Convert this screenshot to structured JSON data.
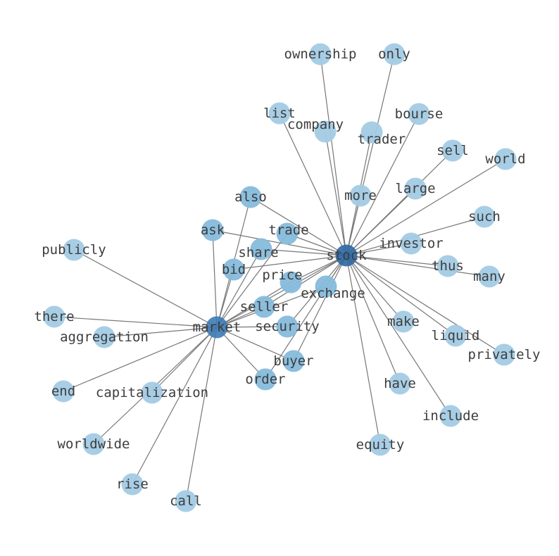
{
  "graph": {
    "colors": {
      "leaf": "#a3cbe5",
      "shared": "#86bbdc",
      "hub_market": "#3d7ab5",
      "hub_stock": "#2c68a3",
      "edge": "#777777",
      "label": "#3d3d3d"
    },
    "hubs": [
      "stock",
      "market"
    ],
    "nodes": [
      {
        "id": "stock",
        "type": "hub"
      },
      {
        "id": "market",
        "type": "hub"
      },
      {
        "id": "ownership",
        "type": "leaf"
      },
      {
        "id": "only",
        "type": "leaf"
      },
      {
        "id": "list",
        "type": "leaf"
      },
      {
        "id": "company",
        "type": "leaf"
      },
      {
        "id": "trader",
        "type": "leaf"
      },
      {
        "id": "bourse",
        "type": "leaf"
      },
      {
        "id": "sell",
        "type": "leaf"
      },
      {
        "id": "world",
        "type": "leaf"
      },
      {
        "id": "large",
        "type": "leaf"
      },
      {
        "id": "more",
        "type": "leaf"
      },
      {
        "id": "also",
        "type": "shared"
      },
      {
        "id": "such",
        "type": "leaf"
      },
      {
        "id": "ask",
        "type": "shared"
      },
      {
        "id": "trade",
        "type": "shared"
      },
      {
        "id": "investor",
        "type": "leaf"
      },
      {
        "id": "share",
        "type": "shared"
      },
      {
        "id": "publicly",
        "type": "leaf"
      },
      {
        "id": "thus",
        "type": "leaf"
      },
      {
        "id": "many",
        "type": "leaf"
      },
      {
        "id": "bid",
        "type": "shared"
      },
      {
        "id": "price",
        "type": "shared"
      },
      {
        "id": "exchange",
        "type": "shared"
      },
      {
        "id": "seller",
        "type": "shared"
      },
      {
        "id": "there",
        "type": "leaf"
      },
      {
        "id": "make",
        "type": "leaf"
      },
      {
        "id": "security",
        "type": "shared"
      },
      {
        "id": "liquid",
        "type": "leaf"
      },
      {
        "id": "aggregation",
        "type": "leaf"
      },
      {
        "id": "privately",
        "type": "leaf"
      },
      {
        "id": "buyer",
        "type": "shared"
      },
      {
        "id": "order",
        "type": "shared"
      },
      {
        "id": "have",
        "type": "leaf"
      },
      {
        "id": "end",
        "type": "leaf"
      },
      {
        "id": "capitalization",
        "type": "leaf"
      },
      {
        "id": "include",
        "type": "leaf"
      },
      {
        "id": "equity",
        "type": "leaf"
      },
      {
        "id": "worldwide",
        "type": "leaf"
      },
      {
        "id": "rise",
        "type": "leaf"
      },
      {
        "id": "call",
        "type": "leaf"
      }
    ],
    "edges": [
      [
        "stock",
        "market"
      ],
      [
        "stock",
        "ownership"
      ],
      [
        "stock",
        "only"
      ],
      [
        "stock",
        "list"
      ],
      [
        "stock",
        "company"
      ],
      [
        "stock",
        "trader"
      ],
      [
        "stock",
        "bourse"
      ],
      [
        "stock",
        "sell"
      ],
      [
        "stock",
        "world"
      ],
      [
        "stock",
        "large"
      ],
      [
        "stock",
        "more"
      ],
      [
        "stock",
        "also"
      ],
      [
        "stock",
        "such"
      ],
      [
        "stock",
        "ask"
      ],
      [
        "stock",
        "trade"
      ],
      [
        "stock",
        "investor"
      ],
      [
        "stock",
        "share"
      ],
      [
        "stock",
        "thus"
      ],
      [
        "stock",
        "many"
      ],
      [
        "stock",
        "bid"
      ],
      [
        "stock",
        "price"
      ],
      [
        "stock",
        "exchange"
      ],
      [
        "stock",
        "seller"
      ],
      [
        "stock",
        "make"
      ],
      [
        "stock",
        "security"
      ],
      [
        "stock",
        "liquid"
      ],
      [
        "stock",
        "privately"
      ],
      [
        "stock",
        "buyer"
      ],
      [
        "stock",
        "order"
      ],
      [
        "stock",
        "have"
      ],
      [
        "stock",
        "include"
      ],
      [
        "stock",
        "equity"
      ],
      [
        "market",
        "also"
      ],
      [
        "market",
        "ask"
      ],
      [
        "market",
        "publicly"
      ],
      [
        "market",
        "there"
      ],
      [
        "market",
        "aggregation"
      ],
      [
        "market",
        "end"
      ],
      [
        "market",
        "capitalization"
      ],
      [
        "market",
        "worldwide"
      ],
      [
        "market",
        "rise"
      ],
      [
        "market",
        "call"
      ],
      [
        "market",
        "share"
      ],
      [
        "market",
        "trade"
      ],
      [
        "market",
        "bid"
      ],
      [
        "market",
        "price"
      ],
      [
        "market",
        "exchange"
      ],
      [
        "market",
        "seller"
      ],
      [
        "market",
        "security"
      ],
      [
        "market",
        "buyer"
      ],
      [
        "market",
        "order"
      ]
    ]
  }
}
